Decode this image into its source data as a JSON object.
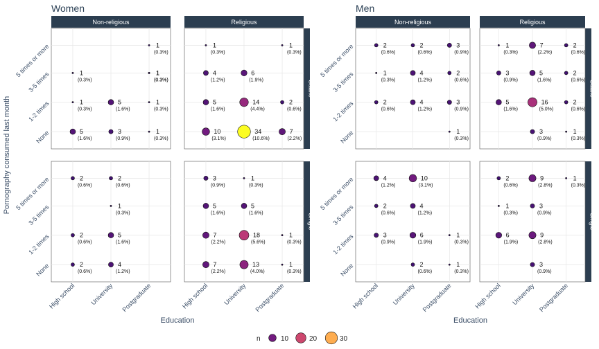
{
  "colors": {
    "strip": "#2c3e50",
    "low": "#3b0f70",
    "high": "#fcfd22"
  },
  "chart_data": {
    "type": "scatter",
    "ylabel": "Pornography consumed last month",
    "xlabel": "Education",
    "x_categories": [
      "High school",
      "University",
      "Postgraduate"
    ],
    "y_categories": [
      "None",
      "1-2 times",
      "3-5 times",
      "5 times or more"
    ],
    "size_range": [
      1,
      34
    ],
    "legend": {
      "title": "n",
      "values": [
        10,
        20,
        30
      ],
      "position": "bottom"
    },
    "genders": [
      {
        "title": "Women",
        "columns": [
          "Non-religious",
          "Religious"
        ],
        "rows": [
          "Stable",
          "Single"
        ],
        "panels": [
          {
            "col": "Non-religious",
            "row": "Stable",
            "points": [
              {
                "x": "Postgraduate",
                "y": "5 times or more",
                "n": 1,
                "pct": "(0.3%)"
              },
              {
                "x": "High school",
                "y": "3-5 times",
                "n": 1,
                "pct": "(0.3%)"
              },
              {
                "x": "Postgraduate",
                "y": "3-5 times",
                "n": 1,
                "pct": "(0.3%)"
              },
              {
                "x": "Postgraduate",
                "y": "3-5 times",
                "n": 1,
                "pct": "(0.3%)"
              },
              {
                "x": "High school",
                "y": "1-2 times",
                "n": 1,
                "pct": "(0.3%)"
              },
              {
                "x": "University",
                "y": "1-2 times",
                "n": 5,
                "pct": "(1.6%)"
              },
              {
                "x": "Postgraduate",
                "y": "1-2 times",
                "n": 1,
                "pct": "(0.3%)"
              },
              {
                "x": "High school",
                "y": "None",
                "n": 5,
                "pct": "(1.6%)"
              },
              {
                "x": "University",
                "y": "None",
                "n": 3,
                "pct": "(0.9%)"
              },
              {
                "x": "Postgraduate",
                "y": "None",
                "n": 1,
                "pct": "(0.3%)"
              }
            ]
          },
          {
            "col": "Religious",
            "row": "Stable",
            "points": [
              {
                "x": "High school",
                "y": "5 times or more",
                "n": 1,
                "pct": "(0.3%)"
              },
              {
                "x": "Postgraduate",
                "y": "5 times or more",
                "n": 1,
                "pct": "(0.3%)"
              },
              {
                "x": "High school",
                "y": "3-5 times",
                "n": 4,
                "pct": "(1.2%)"
              },
              {
                "x": "University",
                "y": "3-5 times",
                "n": 6,
                "pct": "(1.9%)"
              },
              {
                "x": "High school",
                "y": "1-2 times",
                "n": 5,
                "pct": "(1.6%)"
              },
              {
                "x": "University",
                "y": "1-2 times",
                "n": 14,
                "pct": "(4.4%)"
              },
              {
                "x": "Postgraduate",
                "y": "1-2 times",
                "n": 2,
                "pct": "(0.6%)"
              },
              {
                "x": "High school",
                "y": "None",
                "n": 10,
                "pct": "(3.1%)"
              },
              {
                "x": "University",
                "y": "None",
                "n": 34,
                "pct": "(10.6%)"
              },
              {
                "x": "Postgraduate",
                "y": "None",
                "n": 7,
                "pct": "(2.2%)"
              }
            ]
          },
          {
            "col": "Non-religious",
            "row": "Single",
            "points": [
              {
                "x": "High school",
                "y": "5 times or more",
                "n": 2,
                "pct": "(0.6%)"
              },
              {
                "x": "University",
                "y": "5 times or more",
                "n": 2,
                "pct": "(0.6%)"
              },
              {
                "x": "University",
                "y": "3-5 times",
                "n": 1,
                "pct": "(0.3%)"
              },
              {
                "x": "High school",
                "y": "1-2 times",
                "n": 2,
                "pct": "(0.6%)"
              },
              {
                "x": "University",
                "y": "1-2 times",
                "n": 5,
                "pct": "(1.6%)"
              },
              {
                "x": "High school",
                "y": "None",
                "n": 2,
                "pct": "(0.6%)"
              },
              {
                "x": "University",
                "y": "None",
                "n": 4,
                "pct": "(1.2%)"
              }
            ]
          },
          {
            "col": "Religious",
            "row": "Single",
            "points": [
              {
                "x": "High school",
                "y": "5 times or more",
                "n": 3,
                "pct": "(0.9%)"
              },
              {
                "x": "University",
                "y": "5 times or more",
                "n": 1,
                "pct": "(0.3%)"
              },
              {
                "x": "High school",
                "y": "3-5 times",
                "n": 5,
                "pct": "(1.6%)"
              },
              {
                "x": "University",
                "y": "3-5 times",
                "n": 5,
                "pct": "(1.6%)"
              },
              {
                "x": "High school",
                "y": "1-2 times",
                "n": 7,
                "pct": "(2.2%)"
              },
              {
                "x": "University",
                "y": "1-2 times",
                "n": 18,
                "pct": "(5.6%)"
              },
              {
                "x": "Postgraduate",
                "y": "1-2 times",
                "n": 1,
                "pct": "(0.3%)"
              },
              {
                "x": "High school",
                "y": "None",
                "n": 7,
                "pct": "(2.2%)"
              },
              {
                "x": "University",
                "y": "None",
                "n": 13,
                "pct": "(4.0%)"
              },
              {
                "x": "Postgraduate",
                "y": "None",
                "n": 1,
                "pct": "(0.3%)"
              }
            ]
          }
        ]
      },
      {
        "title": "Men",
        "columns": [
          "Non-religious",
          "Religious"
        ],
        "rows": [
          "Stable",
          "Single"
        ],
        "panels": [
          {
            "col": "Non-religious",
            "row": "Stable",
            "points": [
              {
                "x": "High school",
                "y": "5 times or more",
                "n": 2,
                "pct": "(0.6%)"
              },
              {
                "x": "University",
                "y": "5 times or more",
                "n": 2,
                "pct": "(0.6%)"
              },
              {
                "x": "Postgraduate",
                "y": "5 times or more",
                "n": 3,
                "pct": "(0.9%)"
              },
              {
                "x": "High school",
                "y": "3-5 times",
                "n": 1,
                "pct": "(0.3%)"
              },
              {
                "x": "University",
                "y": "3-5 times",
                "n": 4,
                "pct": "(1.2%)"
              },
              {
                "x": "Postgraduate",
                "y": "3-5 times",
                "n": 2,
                "pct": "(0.6%)"
              },
              {
                "x": "High school",
                "y": "1-2 times",
                "n": 2,
                "pct": "(0.6%)"
              },
              {
                "x": "University",
                "y": "1-2 times",
                "n": 4,
                "pct": "(1.2%)"
              },
              {
                "x": "Postgraduate",
                "y": "1-2 times",
                "n": 3,
                "pct": "(0.9%)"
              },
              {
                "x": "Postgraduate",
                "y": "None",
                "n": 1,
                "pct": "(0.3%)"
              }
            ]
          },
          {
            "col": "Religious",
            "row": "Stable",
            "points": [
              {
                "x": "High school",
                "y": "5 times or more",
                "n": 1,
                "pct": "(0.3%)"
              },
              {
                "x": "University",
                "y": "5 times or more",
                "n": 7,
                "pct": "(2.2%)"
              },
              {
                "x": "Postgraduate",
                "y": "5 times or more",
                "n": 2,
                "pct": "(0.6%)"
              },
              {
                "x": "High school",
                "y": "3-5 times",
                "n": 3,
                "pct": "(0.9%)"
              },
              {
                "x": "University",
                "y": "3-5 times",
                "n": 5,
                "pct": "(1.6%)"
              },
              {
                "x": "Postgraduate",
                "y": "3-5 times",
                "n": 2,
                "pct": "(0.6%)"
              },
              {
                "x": "High school",
                "y": "1-2 times",
                "n": 5,
                "pct": "(1.6%)"
              },
              {
                "x": "University",
                "y": "1-2 times",
                "n": 16,
                "pct": "(5.0%)"
              },
              {
                "x": "Postgraduate",
                "y": "1-2 times",
                "n": 2,
                "pct": "(0.6%)"
              },
              {
                "x": "University",
                "y": "None",
                "n": 3,
                "pct": "(0.9%)"
              },
              {
                "x": "Postgraduate",
                "y": "None",
                "n": 1,
                "pct": "(0.3%)"
              }
            ]
          },
          {
            "col": "Non-religious",
            "row": "Single",
            "points": [
              {
                "x": "High school",
                "y": "5 times or more",
                "n": 4,
                "pct": "(1.2%)"
              },
              {
                "x": "University",
                "y": "5 times or more",
                "n": 10,
                "pct": "(3.1%)"
              },
              {
                "x": "High school",
                "y": "3-5 times",
                "n": 2,
                "pct": "(0.6%)"
              },
              {
                "x": "University",
                "y": "3-5 times",
                "n": 4,
                "pct": "(1.2%)"
              },
              {
                "x": "High school",
                "y": "1-2 times",
                "n": 3,
                "pct": "(0.9%)"
              },
              {
                "x": "University",
                "y": "1-2 times",
                "n": 6,
                "pct": "(1.9%)"
              },
              {
                "x": "Postgraduate",
                "y": "1-2 times",
                "n": 1,
                "pct": "(0.3%)"
              },
              {
                "x": "University",
                "y": "None",
                "n": 2,
                "pct": "(0.6%)"
              },
              {
                "x": "Postgraduate",
                "y": "None",
                "n": 1,
                "pct": "(0.3%)"
              }
            ]
          },
          {
            "col": "Religious",
            "row": "Single",
            "points": [
              {
                "x": "High school",
                "y": "5 times or more",
                "n": 2,
                "pct": "(0.6%)"
              },
              {
                "x": "University",
                "y": "5 times or more",
                "n": 9,
                "pct": "(2.8%)"
              },
              {
                "x": "Postgraduate",
                "y": "5 times or more",
                "n": 1,
                "pct": "(0.3%)"
              },
              {
                "x": "High school",
                "y": "3-5 times",
                "n": 1,
                "pct": "(0.3%)"
              },
              {
                "x": "University",
                "y": "3-5 times",
                "n": 3,
                "pct": "(0.9%)"
              },
              {
                "x": "High school",
                "y": "1-2 times",
                "n": 6,
                "pct": "(1.9%)"
              },
              {
                "x": "University",
                "y": "1-2 times",
                "n": 9,
                "pct": "(2.8%)"
              },
              {
                "x": "University",
                "y": "None",
                "n": 3,
                "pct": "(0.9%)"
              }
            ]
          }
        ]
      }
    ]
  }
}
